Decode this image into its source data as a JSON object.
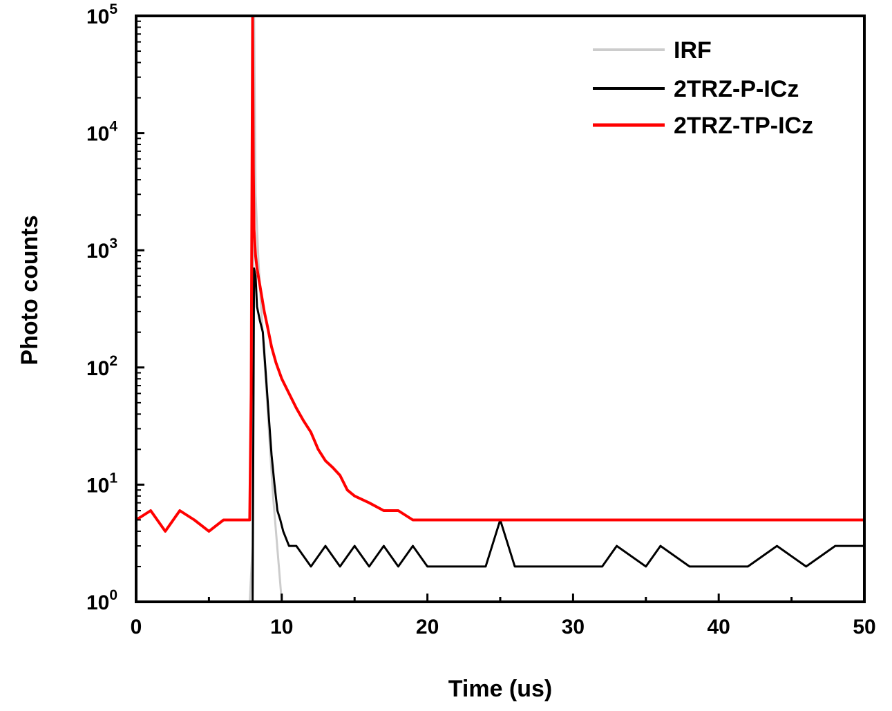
{
  "chart_data": {
    "type": "line",
    "title": "",
    "xlabel": "Time (us)",
    "ylabel": "Photo counts",
    "xlim": [
      0,
      50
    ],
    "ylim": [
      1,
      100000
    ],
    "yscale": "log",
    "xticks": [
      0,
      10,
      20,
      30,
      40,
      50
    ],
    "xtick_labels": [
      "0",
      "10",
      "20",
      "30",
      "40",
      "50"
    ],
    "yticks": [
      {
        "base": "10",
        "exp": "0",
        "value": 1
      },
      {
        "base": "10",
        "exp": "1",
        "value": 10
      },
      {
        "base": "10",
        "exp": "2",
        "value": 100
      },
      {
        "base": "10",
        "exp": "3",
        "value": 1000
      },
      {
        "base": "10",
        "exp": "4",
        "value": 10000
      },
      {
        "base": "10",
        "exp": "5",
        "value": 100000
      }
    ],
    "grid": false,
    "legend_position": "top-right",
    "series": [
      {
        "name": "IRF",
        "color": "#cccccc",
        "x": [
          7.8,
          8.0,
          8.1,
          8.2,
          8.4,
          8.6,
          8.8,
          9.0,
          9.2,
          9.4,
          9.6,
          9.8,
          10.0
        ],
        "y": [
          1,
          3,
          100000,
          3000,
          800,
          300,
          120,
          50,
          20,
          8,
          4,
          2,
          1
        ]
      },
      {
        "name": "2TRZ-P-ICz",
        "color": "#000000",
        "x": [
          8.0,
          8.1,
          8.2,
          8.3,
          8.5,
          8.7,
          8.9,
          9.1,
          9.3,
          9.5,
          9.7,
          9.9,
          10.1,
          10.5,
          11.0,
          12.0,
          13.0,
          14.0,
          15.0,
          16.0,
          17.0,
          18.0,
          19.0,
          20.0,
          22.0,
          24.0,
          25.0,
          26.0,
          28.0,
          30.0,
          32.0,
          33.0,
          35.0,
          36.0,
          38.0,
          40.0,
          42.0,
          44.0,
          46.0,
          48.0,
          50.0
        ],
        "y": [
          1,
          700,
          600,
          330,
          250,
          200,
          90,
          40,
          18,
          10,
          6,
          5,
          4,
          3,
          3,
          2,
          3,
          2,
          3,
          2,
          3,
          2,
          3,
          2,
          2,
          2,
          5,
          2,
          2,
          2,
          2,
          3,
          2,
          3,
          2,
          2,
          2,
          3,
          2,
          3,
          3
        ]
      },
      {
        "name": "2TRZ-TP-ICz",
        "color": "#ff0000",
        "x": [
          0,
          1,
          2,
          3,
          4,
          5,
          6,
          7,
          7.8,
          7.9,
          8.0,
          8.05,
          8.1,
          8.2,
          8.3,
          8.5,
          8.8,
          9.0,
          9.3,
          9.6,
          10.0,
          10.5,
          11.0,
          11.5,
          12.0,
          12.5,
          13.0,
          13.5,
          14.0,
          14.5,
          15.0,
          16.0,
          17.0,
          18.0,
          19.0,
          20.0,
          22.0,
          24.0,
          26.0,
          28.0,
          30.0,
          32.0,
          34.0,
          36.0,
          38.0,
          40.0,
          42.0,
          44.0,
          46.0,
          48.0,
          50.0
        ],
        "y": [
          5,
          6,
          4,
          6,
          5,
          4,
          5,
          5,
          5,
          60,
          100000,
          5000,
          1500,
          900,
          700,
          500,
          300,
          230,
          150,
          110,
          80,
          60,
          45,
          35,
          28,
          20,
          16,
          14,
          12,
          9,
          8,
          7,
          6,
          6,
          5,
          5,
          5,
          5,
          5,
          5,
          5,
          5,
          5,
          5,
          5,
          5,
          5,
          5,
          5,
          5,
          5
        ]
      }
    ]
  }
}
